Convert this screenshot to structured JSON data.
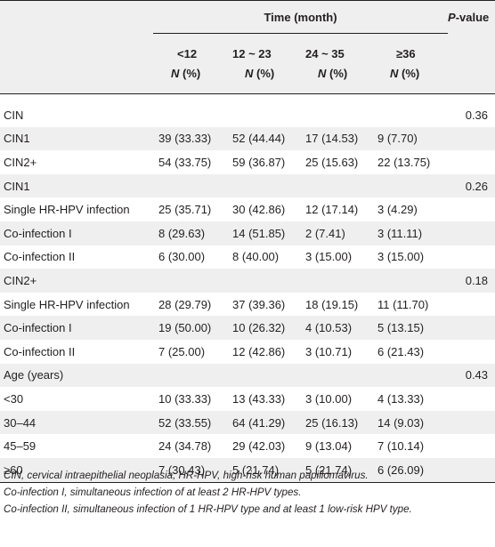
{
  "header": {
    "time_label": "Time (month)",
    "p_label": "P",
    "p_suffix": "-value",
    "groups": [
      {
        "range": "<12",
        "n": "N",
        "pct": "(%)"
      },
      {
        "range": "12 ~ 23",
        "n": "N",
        "pct": "(%)"
      },
      {
        "range": "24 ~ 35",
        "n": "N",
        "pct": "(%)"
      },
      {
        "range": "≥36",
        "n": "N",
        "pct": "(%)"
      }
    ]
  },
  "rows": [
    {
      "label": "CIN",
      "v1": "",
      "v2": "",
      "v3": "",
      "v4": "",
      "p": "0.36"
    },
    {
      "label": "CIN1",
      "v1": "39 (33.33)",
      "v2": "52 (44.44)",
      "v3": "17 (14.53)",
      "v4": "9 (7.70)",
      "p": ""
    },
    {
      "label": "CIN2+",
      "v1": "54 (33.75)",
      "v2": "59 (36.87)",
      "v3": "25 (15.63)",
      "v4": "22 (13.75)",
      "p": ""
    },
    {
      "label": "CIN1",
      "v1": "",
      "v2": "",
      "v3": "",
      "v4": "",
      "p": "0.26"
    },
    {
      "label": "Single HR-HPV infection",
      "v1": "25 (35.71)",
      "v2": "30 (42.86)",
      "v3": "12 (17.14)",
      "v4": "3 (4.29)",
      "p": ""
    },
    {
      "label": "Co-infection I",
      "v1": "8 (29.63)",
      "v2": "14 (51.85)",
      "v3": "2 (7.41)",
      "v4": "3 (11.11)",
      "p": ""
    },
    {
      "label": "Co-infection II",
      "v1": "6 (30.00)",
      "v2": "8 (40.00)",
      "v3": "3 (15.00)",
      "v4": "3 (15.00)",
      "p": ""
    },
    {
      "label": "CIN2+",
      "v1": "",
      "v2": "",
      "v3": "",
      "v4": "",
      "p": "0.18"
    },
    {
      "label": "Single HR-HPV infection",
      "v1": "28 (29.79)",
      "v2": "37 (39.36)",
      "v3": "18 (19.15)",
      "v4": "11 (11.70)",
      "p": ""
    },
    {
      "label": "Co-infection I",
      "v1": "19 (50.00)",
      "v2": "10 (26.32)",
      "v3": "4 (10.53)",
      "v4": "5 (13.15)",
      "p": ""
    },
    {
      "label": "Co-infection II",
      "v1": "7 (25.00)",
      "v2": "12 (42.86)",
      "v3": "3 (10.71)",
      "v4": "6 (21.43)",
      "p": ""
    },
    {
      "label": "Age (years)",
      "v1": "",
      "v2": "",
      "v3": "",
      "v4": "",
      "p": "0.43"
    },
    {
      "label": "<30",
      "v1": "10 (33.33)",
      "v2": "13 (43.33)",
      "v3": "3 (10.00)",
      "v4": "4 (13.33)",
      "p": ""
    },
    {
      "label": "30–44",
      "v1": "52 (33.55)",
      "v2": "64 (41.29)",
      "v3": "25 (16.13)",
      "v4": "14 (9.03)",
      "p": ""
    },
    {
      "label": "45–59",
      "v1": "24 (34.78)",
      "v2": "29 (42.03)",
      "v3": "9 (13.04)",
      "v4": "7 (10.14)",
      "p": ""
    },
    {
      "label": "≥60",
      "v1": "7 (30.43)",
      "v2": "5 (21.74)",
      "v3": "5 (21.74)",
      "v4": "6 (26.09)",
      "p": ""
    }
  ],
  "notes": [
    "CIN, cervical intraepithelial neoplasia; HR-HPV, high-risk human papillomavirus.",
    "Co-infection I, simultaneous infection of at least 2 HR-HPV types.",
    "Co-infection II, simultaneous infection of 1 HR-HPV type and at least 1 low-risk HPV type."
  ]
}
